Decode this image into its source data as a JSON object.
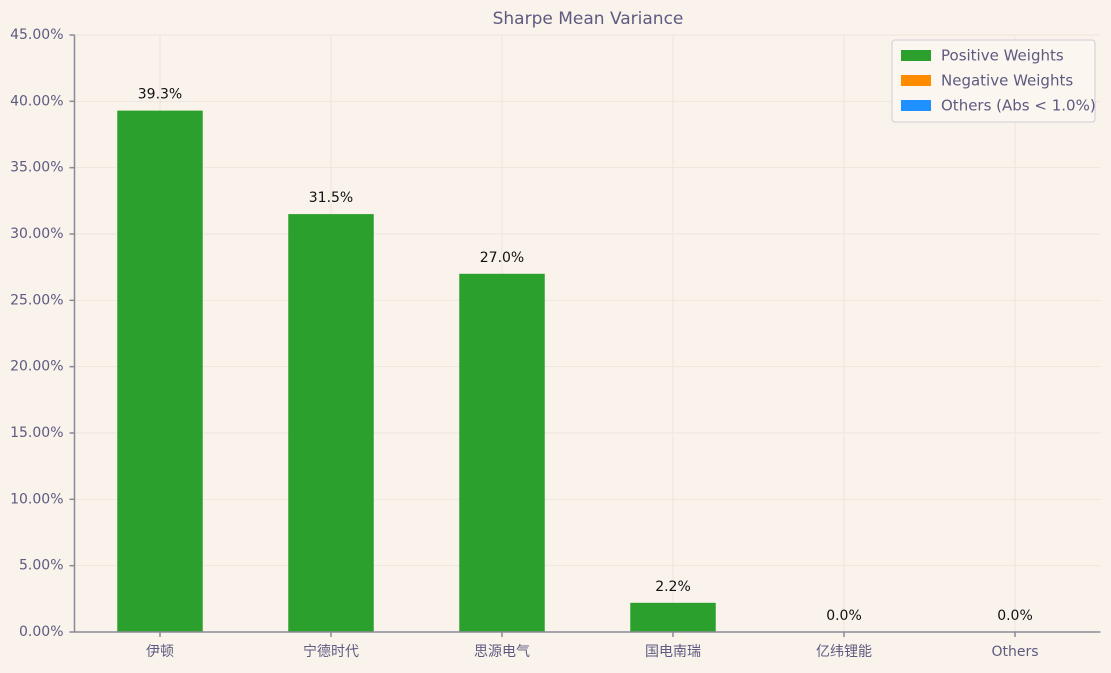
{
  "chart_data": {
    "type": "bar",
    "title": "Sharpe Mean Variance",
    "categories": [
      "伊顿",
      "宁德时代",
      "思源电气",
      "国电南瑞",
      "亿纬锂能",
      "Others"
    ],
    "values": [
      39.3,
      31.5,
      27.0,
      2.2,
      0.0,
      0.0
    ],
    "value_labels": [
      "39.3%",
      "31.5%",
      "27.0%",
      "2.2%",
      "0.0%",
      "0.0%"
    ],
    "color": "#2ca02c",
    "ylim": [
      0,
      45
    ],
    "yticks": [
      {
        "value": 0,
        "label": "0.00%"
      },
      {
        "value": 5,
        "label": "5.00%"
      },
      {
        "value": 10,
        "label": "10.00%"
      },
      {
        "value": 15,
        "label": "15.00%"
      },
      {
        "value": 20,
        "label": "20.00%"
      },
      {
        "value": 25,
        "label": "25.00%"
      },
      {
        "value": 30,
        "label": "30.00%"
      },
      {
        "value": 35,
        "label": "35.00%"
      },
      {
        "value": 40,
        "label": "40.00%"
      },
      {
        "value": 45,
        "label": "45.00%"
      }
    ],
    "grid": true,
    "legend_position": "upper right",
    "legend": [
      {
        "name": "Positive Weights",
        "color": "#2ca02c"
      },
      {
        "name": "Negative Weights",
        "color": "#ff8c00"
      },
      {
        "name": "Others (Abs < 1.0%)",
        "color": "#1e90ff"
      }
    ]
  }
}
